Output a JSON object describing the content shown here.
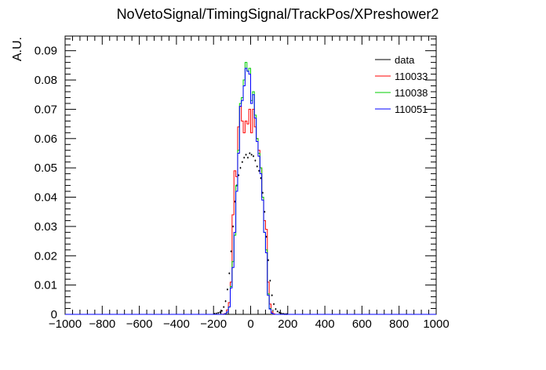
{
  "chart_data": {
    "type": "line",
    "title": "NoVetoSignal/TimingSignal/TrackPos/XPreshower2",
    "xlabel": "",
    "ylabel": "A.U.",
    "xlim": [
      -1000,
      1000
    ],
    "ylim": [
      0,
      0.095
    ],
    "xticks": [
      -1000,
      -800,
      -600,
      -400,
      -200,
      0,
      200,
      400,
      600,
      800,
      1000
    ],
    "xtick_labels": [
      "−1000",
      "−800",
      "−600",
      "−400",
      "−200",
      "0",
      "200",
      "400",
      "600",
      "800",
      "1000"
    ],
    "yticks": [
      0,
      0.01,
      0.02,
      0.03,
      0.04,
      0.05,
      0.06,
      0.07,
      0.08,
      0.09
    ],
    "ytick_labels": [
      "0",
      "0.01",
      "0.02",
      "0.03",
      "0.04",
      "0.05",
      "0.06",
      "0.07",
      "0.08",
      "0.09"
    ],
    "legend_position": "top-right",
    "bin_width": 10,
    "bin_centers": [
      -195,
      -185,
      -175,
      -165,
      -155,
      -145,
      -135,
      -125,
      -115,
      -105,
      -95,
      -85,
      -75,
      -65,
      -55,
      -45,
      -35,
      -25,
      -15,
      -5,
      5,
      15,
      25,
      35,
      45,
      55,
      65,
      75,
      85,
      95,
      105,
      115,
      125,
      135,
      145,
      155,
      165,
      175,
      185,
      195
    ],
    "series": [
      {
        "name": "data",
        "style": "markers",
        "color": "#000000",
        "values": [
          0.0002,
          0.0003,
          0.0005,
          0.0007,
          0.0012,
          0.0025,
          0.0045,
          0.0085,
          0.014,
          0.0215,
          0.03,
          0.0385,
          0.044,
          0.0475,
          0.05,
          0.052,
          0.0535,
          0.0545,
          0.0535,
          0.055,
          0.0545,
          0.054,
          0.0525,
          0.0505,
          0.049,
          0.0465,
          0.0415,
          0.035,
          0.0265,
          0.0185,
          0.0115,
          0.0065,
          0.0035,
          0.0018,
          0.001,
          0.0006,
          0.0003,
          0.0002,
          0.0001,
          0.0001
        ]
      },
      {
        "name": "110033",
        "style": "step",
        "color": "#ff0000",
        "values": [
          0.0,
          0.0,
          0.0,
          0.0,
          0.0,
          0.0001,
          0.0003,
          0.0015,
          0.004,
          0.011,
          0.034,
          0.049,
          0.047,
          0.064,
          0.071,
          0.066,
          0.062,
          0.066,
          0.065,
          0.07,
          0.062,
          0.07,
          0.064,
          0.06,
          0.056,
          0.05,
          0.04,
          0.032,
          0.029,
          0.011,
          0.0035,
          0.0008,
          0.0002,
          0.0,
          0.0,
          0.0,
          0.0,
          0.0,
          0.0,
          0.0
        ]
      },
      {
        "name": "110038",
        "style": "step",
        "color": "#00cc00",
        "values": [
          0.0,
          0.0,
          0.0,
          0.0,
          0.0,
          0.0,
          0.0002,
          0.0008,
          0.0025,
          0.0095,
          0.018,
          0.027,
          0.044,
          0.056,
          0.072,
          0.074,
          0.08,
          0.086,
          0.083,
          0.084,
          0.073,
          0.076,
          0.068,
          0.06,
          0.055,
          0.05,
          0.04,
          0.028,
          0.022,
          0.007,
          0.002,
          0.0004,
          0.0,
          0.0,
          0.0,
          0.0,
          0.0,
          0.0,
          0.0,
          0.0
        ]
      },
      {
        "name": "110051",
        "style": "step",
        "color": "#0000ff",
        "values": [
          0.0,
          0.0,
          0.0,
          0.0,
          0.0,
          0.0,
          0.0002,
          0.0008,
          0.0025,
          0.009,
          0.016,
          0.028,
          0.042,
          0.055,
          0.071,
          0.073,
          0.078,
          0.084,
          0.083,
          0.082,
          0.072,
          0.075,
          0.067,
          0.059,
          0.054,
          0.048,
          0.039,
          0.028,
          0.021,
          0.0065,
          0.0018,
          0.0004,
          0.0,
          0.0,
          0.0,
          0.0,
          0.0,
          0.0,
          0.0,
          0.0
        ]
      }
    ]
  }
}
